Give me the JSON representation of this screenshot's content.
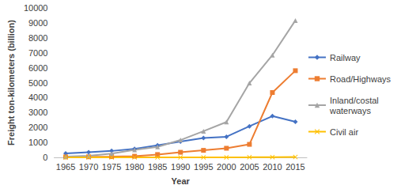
{
  "chart_data": {
    "type": "line",
    "x_label": "Year",
    "y_label": "Freight ton-kilometers (billion)",
    "categories": [
      "1965",
      "1970",
      "1975",
      "1980",
      "1985",
      "1990",
      "1995",
      "2000",
      "2005",
      "2010",
      "2015"
    ],
    "series": [
      {
        "name": "Railway",
        "color": "#4472c4",
        "marker": "diamond",
        "values": [
          270,
          350,
          430,
          570,
          810,
          1060,
          1300,
          1380,
          2080,
          2760,
          2380
        ]
      },
      {
        "name": "Road/Highways",
        "color": "#ed7d31",
        "marker": "square",
        "values": [
          30,
          40,
          50,
          75,
          190,
          340,
          470,
          610,
          870,
          4340,
          5800
        ]
      },
      {
        "name": "Inland/costal waterways",
        "color": "#a5a5a5",
        "marker": "triangle",
        "values": [
          50,
          100,
          250,
          500,
          700,
          1160,
          1750,
          2370,
          4970,
          6840,
          9160
        ]
      },
      {
        "name": "Civil air",
        "color": "#ffc000",
        "marker": "x",
        "values": [
          0,
          0,
          0,
          0,
          0,
          1,
          2,
          5,
          8,
          18,
          21
        ]
      }
    ],
    "ylim": [
      0,
      10000
    ],
    "yticks": [
      0,
      1000,
      2000,
      3000,
      4000,
      5000,
      6000,
      7000,
      8000,
      9000,
      10000
    ],
    "grid": false,
    "legend": "right"
  }
}
